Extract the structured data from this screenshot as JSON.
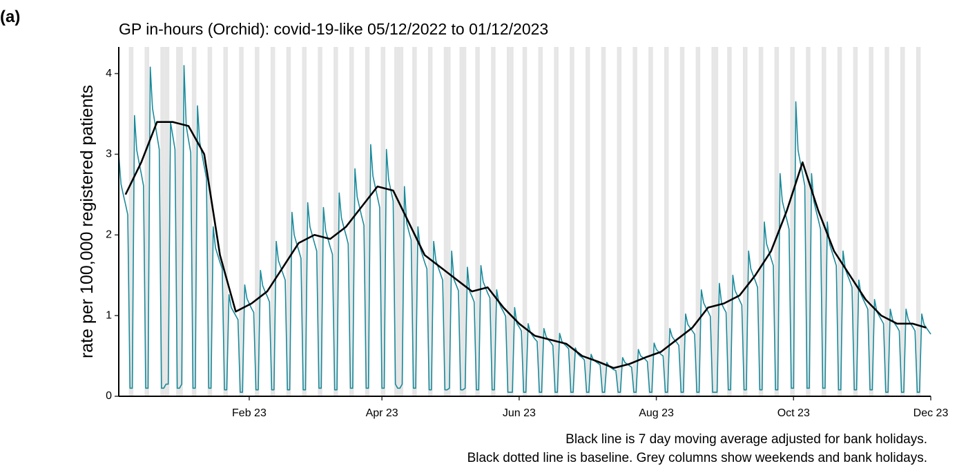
{
  "panel_label": "(a)",
  "chart_data": {
    "type": "line",
    "title": "GP in-hours (Orchid): covid-19-like 05/12/2022 to 01/12/2023",
    "y_label": "rate per 100,000 registered patients",
    "notes": [
      "Black line is 7 day moving average adjusted for bank holidays.",
      "Black dotted line is baseline. Grey columns show weekends and bank holidays."
    ],
    "xlim": [
      0,
      361
    ],
    "xticks": [
      {
        "value": 58,
        "label": "Feb 23"
      },
      {
        "value": 117,
        "label": "Apr 23"
      },
      {
        "value": 178,
        "label": "Jun 23"
      },
      {
        "value": 239,
        "label": "Aug 23"
      },
      {
        "value": 300,
        "label": "Oct 23"
      },
      {
        "value": 361,
        "label": "Dec 23"
      }
    ],
    "ylim": [
      0,
      4.33
    ],
    "yticks": [
      0,
      1,
      2,
      3,
      4
    ],
    "bank_holidays": [
      21,
      22,
      28,
      123,
      126,
      147,
      154,
      175,
      266
    ],
    "shade_color": "#e6e6e6",
    "series": [
      {
        "color": "#1a8a9b",
        "x": [
          0,
          1,
          2,
          3,
          4,
          5,
          6,
          7,
          8,
          9,
          10,
          11,
          12,
          13,
          14,
          15,
          16,
          17,
          18,
          19,
          20,
          21,
          22,
          23,
          24,
          25,
          26,
          27,
          28,
          29,
          30,
          31,
          32,
          33,
          34,
          35,
          36,
          37,
          38,
          39,
          40,
          41,
          42,
          43,
          44,
          45,
          46,
          47,
          48,
          49,
          50,
          51,
          52,
          53,
          54,
          55,
          56,
          57,
          58,
          59,
          60,
          61,
          62,
          63,
          64,
          65,
          66,
          67,
          68,
          69,
          70,
          71,
          72,
          73,
          74,
          75,
          76,
          77,
          78,
          79,
          80,
          81,
          82,
          83,
          84,
          85,
          86,
          87,
          88,
          89,
          90,
          91,
          92,
          93,
          94,
          95,
          96,
          97,
          98,
          99,
          100,
          101,
          102,
          103,
          104,
          105,
          106,
          107,
          108,
          109,
          110,
          111,
          112,
          113,
          114,
          115,
          116,
          117,
          118,
          119,
          120,
          121,
          122,
          123,
          124,
          125,
          126,
          127,
          128,
          129,
          130,
          131,
          132,
          133,
          134,
          135,
          136,
          137,
          138,
          139,
          140,
          141,
          142,
          143,
          144,
          145,
          146,
          147,
          148,
          149,
          150,
          151,
          152,
          153,
          154,
          155,
          156,
          157,
          158,
          159,
          160,
          161,
          162,
          163,
          164,
          165,
          166,
          167,
          168,
          169,
          170,
          171,
          172,
          173,
          174,
          175,
          176,
          177,
          178,
          179,
          180,
          181,
          182,
          183,
          184,
          185,
          186,
          187,
          188,
          189,
          190,
          191,
          192,
          193,
          194,
          195,
          196,
          197,
          198,
          199,
          200,
          201,
          202,
          203,
          204,
          205,
          206,
          207,
          208,
          209,
          210,
          211,
          212,
          213,
          214,
          215,
          216,
          217,
          218,
          219,
          220,
          221,
          222,
          223,
          224,
          225,
          226,
          227,
          228,
          229,
          230,
          231,
          232,
          233,
          234,
          235,
          236,
          237,
          238,
          239,
          240,
          241,
          242,
          243,
          244,
          245,
          246,
          247,
          248,
          249,
          250,
          251,
          252,
          253,
          254,
          255,
          256,
          257,
          258,
          259,
          260,
          261,
          262,
          263,
          264,
          265,
          266,
          267,
          268,
          269,
          270,
          271,
          272,
          273,
          274,
          275,
          276,
          277,
          278,
          279,
          280,
          281,
          282,
          283,
          284,
          285,
          286,
          287,
          288,
          289,
          290,
          291,
          292,
          293,
          294,
          295,
          296,
          297,
          298,
          299,
          300,
          301,
          302,
          303,
          304,
          305,
          306,
          307,
          308,
          309,
          310,
          311,
          312,
          313,
          314,
          315,
          316,
          317,
          318,
          319,
          320,
          321,
          322,
          323,
          324,
          325,
          326,
          327,
          328,
          329,
          330,
          331,
          332,
          333,
          334,
          335,
          336,
          337,
          338,
          339,
          340,
          341,
          342,
          343,
          344,
          345,
          346,
          347,
          348,
          349,
          350,
          351,
          352,
          353,
          354,
          355,
          356,
          357,
          358,
          359,
          360,
          361
        ],
        "values": [
          3.0,
          2.63,
          2.5,
          2.38,
          2.25,
          0.1,
          0.1,
          3.48,
          3.05,
          2.9,
          2.76,
          2.61,
          0.1,
          0.1,
          4.08,
          3.57,
          3.4,
          3.23,
          3.06,
          0.1,
          0.1,
          0.15,
          0.15,
          3.4,
          3.23,
          3.06,
          0.1,
          0.1,
          0.15,
          4.1,
          3.35,
          3.18,
          3.02,
          0.1,
          0.1,
          3.6,
          3.15,
          3.0,
          2.85,
          2.7,
          0.1,
          0.1,
          2.1,
          1.84,
          1.75,
          1.66,
          1.58,
          0.08,
          0.08,
          1.26,
          1.1,
          1.05,
          1.0,
          0.95,
          0.05,
          0.05,
          1.38,
          1.21,
          1.15,
          1.09,
          1.04,
          0.08,
          0.08,
          1.56,
          1.37,
          1.3,
          1.24,
          1.17,
          0.08,
          0.08,
          1.92,
          1.68,
          1.6,
          1.52,
          1.44,
          0.08,
          0.08,
          2.28,
          2.0,
          1.9,
          1.81,
          1.71,
          0.08,
          0.08,
          2.4,
          2.1,
          2.0,
          1.9,
          1.8,
          0.1,
          0.1,
          2.34,
          2.05,
          1.95,
          1.85,
          1.76,
          0.08,
          0.08,
          2.52,
          2.21,
          2.1,
          2.0,
          1.89,
          0.1,
          0.1,
          2.82,
          2.47,
          2.35,
          2.23,
          2.12,
          0.1,
          0.1,
          3.12,
          2.73,
          2.6,
          2.47,
          2.34,
          0.1,
          0.1,
          3.06,
          2.68,
          2.55,
          2.42,
          0.15,
          0.1,
          0.1,
          0.15,
          2.6,
          2.15,
          2.04,
          1.94,
          0.1,
          0.1,
          2.1,
          1.84,
          1.75,
          1.66,
          1.58,
          0.08,
          0.08,
          1.92,
          1.68,
          1.6,
          1.52,
          1.44,
          0.08,
          0.08,
          0.1,
          1.8,
          1.45,
          1.38,
          1.31,
          0.08,
          0.08,
          0.1,
          1.6,
          1.3,
          1.24,
          1.17,
          0.08,
          0.08,
          1.62,
          1.42,
          1.35,
          1.28,
          1.22,
          0.08,
          0.08,
          1.32,
          1.16,
          1.1,
          1.05,
          0.99,
          0.05,
          0.05,
          0.05,
          1.1,
          0.9,
          0.86,
          0.81,
          0.05,
          0.05,
          0.9,
          0.79,
          0.75,
          0.71,
          0.68,
          0.05,
          0.05,
          0.84,
          0.74,
          0.7,
          0.67,
          0.63,
          0.05,
          0.05,
          0.78,
          0.68,
          0.65,
          0.62,
          0.59,
          0.05,
          0.05,
          0.6,
          0.53,
          0.5,
          0.48,
          0.45,
          0.05,
          0.05,
          0.52,
          0.45,
          0.43,
          0.41,
          0.39,
          0.05,
          0.05,
          0.42,
          0.37,
          0.35,
          0.33,
          0.32,
          0.05,
          0.05,
          0.48,
          0.42,
          0.4,
          0.38,
          0.36,
          0.05,
          0.05,
          0.58,
          0.5,
          0.48,
          0.46,
          0.43,
          0.05,
          0.05,
          0.66,
          0.58,
          0.55,
          0.52,
          0.5,
          0.05,
          0.05,
          0.84,
          0.74,
          0.7,
          0.67,
          0.63,
          0.05,
          0.05,
          1.02,
          0.89,
          0.85,
          0.81,
          0.77,
          0.05,
          0.05,
          1.32,
          1.16,
          1.1,
          1.05,
          0.99,
          0.05,
          0.05,
          0.05,
          1.4,
          1.15,
          1.09,
          1.04,
          0.08,
          0.08,
          1.5,
          1.31,
          1.25,
          1.19,
          1.13,
          0.08,
          0.08,
          1.8,
          1.58,
          1.5,
          1.43,
          1.35,
          0.08,
          0.08,
          2.16,
          1.89,
          1.8,
          1.71,
          1.62,
          0.08,
          0.08,
          2.76,
          2.42,
          2.3,
          2.19,
          2.07,
          0.1,
          0.1,
          3.65,
          3.05,
          2.9,
          2.76,
          2.61,
          0.1,
          0.1,
          2.76,
          2.42,
          2.3,
          2.19,
          2.07,
          0.1,
          0.1,
          2.16,
          1.89,
          1.8,
          1.71,
          1.62,
          0.08,
          0.08,
          1.8,
          1.58,
          1.5,
          1.43,
          1.35,
          0.08,
          0.08,
          1.44,
          1.26,
          1.2,
          1.14,
          1.08,
          0.08,
          0.08,
          1.2,
          1.05,
          1.0,
          0.95,
          0.9,
          0.05,
          0.05,
          1.08,
          0.95,
          0.9,
          0.86,
          0.81,
          0.05,
          0.05,
          1.08,
          0.95,
          0.9,
          0.86,
          0.81,
          0.05,
          0.05,
          1.02,
          0.89,
          0.85,
          0.81,
          0.77
        ]
      },
      {
        "color": "#000000",
        "x": [
          3,
          10,
          17,
          24,
          31,
          38,
          45,
          52,
          59,
          66,
          73,
          80,
          87,
          94,
          101,
          108,
          115,
          122,
          129,
          136,
          143,
          150,
          157,
          164,
          171,
          178,
          185,
          192,
          199,
          206,
          213,
          220,
          227,
          234,
          241,
          248,
          255,
          262,
          269,
          276,
          283,
          290,
          297,
          304,
          311,
          318,
          325,
          332,
          339,
          346,
          353,
          359
        ],
        "values": [
          2.5,
          2.9,
          3.4,
          3.4,
          3.35,
          3.0,
          1.75,
          1.05,
          1.15,
          1.3,
          1.6,
          1.9,
          2.0,
          1.95,
          2.1,
          2.35,
          2.6,
          2.55,
          2.15,
          1.75,
          1.6,
          1.45,
          1.3,
          1.35,
          1.1,
          0.9,
          0.75,
          0.7,
          0.65,
          0.5,
          0.43,
          0.35,
          0.4,
          0.48,
          0.55,
          0.7,
          0.85,
          1.1,
          1.15,
          1.25,
          1.5,
          1.8,
          2.3,
          2.9,
          2.3,
          1.8,
          1.5,
          1.2,
          1.0,
          0.9,
          0.9,
          0.85
        ]
      }
    ]
  }
}
